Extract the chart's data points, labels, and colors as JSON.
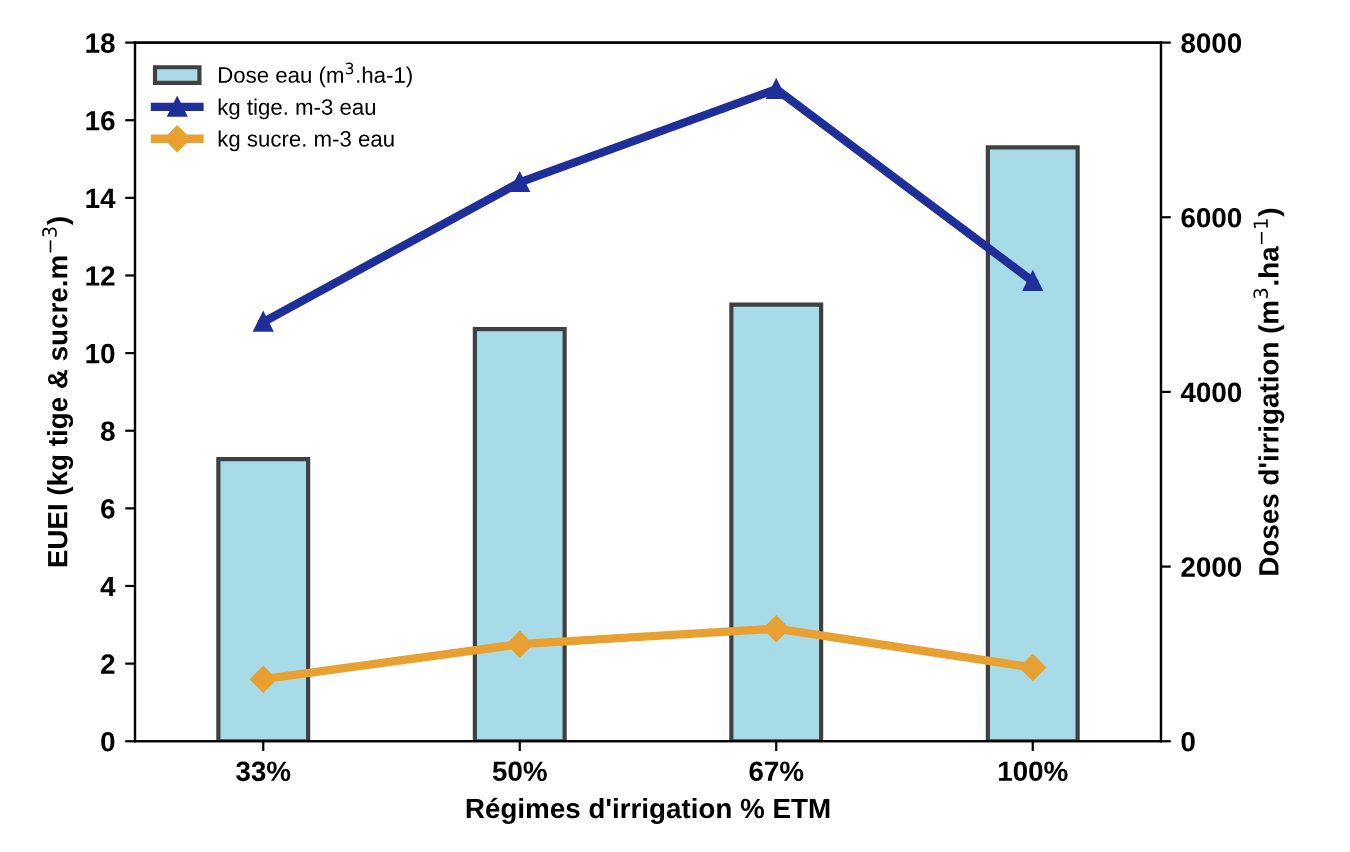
{
  "chart_data": {
    "type": "line",
    "categories": [
      "33%",
      "50%",
      "67%",
      "100%"
    ],
    "xlabel": "Régimes d'irrigation % ETM",
    "ylabel": "EUEI (kg tige & sucre.m$^{−3}$)",
    "y2label": "Doses d'irrigation (m$^{3}$.ha$^{−1}$)",
    "series": [
      {
        "name": "Dose eau (m$^{3}$.ha-1)",
        "type": "bar",
        "axis": "y2",
        "color": "#a8dbe8",
        "values": [
          3230,
          4720,
          5000,
          6800
        ]
      },
      {
        "name": "kg tige. m-3 eau",
        "color": "#1f2f9a",
        "marker": "triangle",
        "values": [
          10.8,
          14.4,
          16.8,
          11.85
        ]
      },
      {
        "name": "kg sucre. m-3 eau",
        "color": "#e8a030",
        "marker": "diamond",
        "values": [
          1.6,
          2.5,
          2.9,
          1.9
        ]
      }
    ],
    "ylim": [
      0,
      18
    ],
    "yticks": [
      0,
      2,
      4,
      6,
      8,
      10,
      12,
      14,
      16,
      18
    ],
    "y2lim": [
      0,
      8000
    ],
    "y2ticks": [
      0,
      2000,
      4000,
      6000,
      8000
    ],
    "grid": false,
    "legend": "top left"
  }
}
